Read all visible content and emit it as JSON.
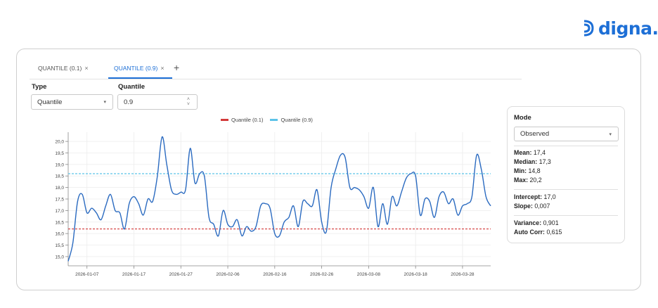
{
  "logo": {
    "text": "digna",
    "dot": "."
  },
  "tabs": [
    {
      "label": "QUANTILE (0.1)",
      "close": "×",
      "active": false
    },
    {
      "label": "QUANTILE (0.9)",
      "close": "×",
      "active": true
    }
  ],
  "tab_add": "+",
  "controls": {
    "type_label": "Type",
    "type_value": "Quantile",
    "quantile_label": "Quantile",
    "quantile_value": "0.9",
    "caret": "▾",
    "up": "˄",
    "down": "˅"
  },
  "stats": {
    "mode_label": "Mode",
    "mode_value": "Observed",
    "mean_label": "Mean:",
    "mean": "17,4",
    "median_label": "Median:",
    "median": "17,3",
    "min_label": "Min:",
    "min": "14,8",
    "max_label": "Max:",
    "max": "20,2",
    "intercept_label": "Intercept:",
    "intercept": "17,0",
    "slope_label": "Slope:",
    "slope": "0,007",
    "variance_label": "Variance:",
    "variance": "0,901",
    "autocorr_label": "Auto Corr:",
    "autocorr": "0,615"
  },
  "colors": {
    "accent": "#1d6fd6",
    "series": "#2a6ac0",
    "q_low": "#d33a3a",
    "q_high": "#5cc3e8"
  },
  "chart_data": {
    "type": "line",
    "title": "",
    "xlabel": "",
    "ylabel": "",
    "ylim": [
      14.6,
      20.4
    ],
    "yticks": [
      "15,0",
      "15,5",
      "16,0",
      "16,5",
      "17,0",
      "17,5",
      "18,0",
      "18,5",
      "19,0",
      "19,5",
      "20,0"
    ],
    "xticks": [
      "2026-01-07",
      "2026-01-17",
      "2026-01-27",
      "2026-02-06",
      "2026-02-16",
      "2026-02-26",
      "2026-03-08",
      "2026-03-18",
      "2026-03-28"
    ],
    "x_start": "2026-01-03",
    "x_end": "2026-04-03",
    "legend": [
      {
        "name": "Quantile (0.1)",
        "color": "#d33a3a",
        "value": 16.2
      },
      {
        "name": "Quantile (0.9)",
        "color": "#5cc3e8",
        "value": 18.6
      }
    ],
    "series": [
      {
        "name": "",
        "values": [
          14.8,
          15.6,
          17.4,
          17.7,
          16.9,
          17.1,
          16.9,
          16.6,
          17.2,
          17.7,
          17.0,
          16.9,
          16.2,
          17.3,
          17.6,
          17.3,
          16.8,
          17.5,
          17.4,
          18.5,
          20.2,
          19.0,
          17.9,
          17.7,
          17.8,
          17.9,
          19.7,
          18.2,
          18.6,
          18.5,
          16.7,
          16.4,
          15.9,
          17.0,
          16.4,
          16.3,
          16.6,
          15.9,
          16.3,
          16.1,
          16.3,
          17.2,
          17.3,
          17.1,
          16.0,
          15.9,
          16.5,
          16.7,
          17.2,
          16.3,
          17.4,
          17.3,
          17.2,
          17.9,
          16.5,
          16.1,
          18.0,
          18.8,
          19.4,
          19.3,
          18.0,
          18.0,
          17.9,
          17.6,
          17.1,
          18.0,
          16.3,
          17.3,
          16.4,
          17.6,
          17.2,
          17.8,
          18.4,
          18.6,
          18.5,
          16.8,
          17.5,
          17.4,
          16.7,
          17.6,
          17.8,
          17.3,
          17.5,
          16.8,
          17.2,
          17.3,
          17.6,
          19.4,
          18.8,
          17.6,
          17.2
        ]
      }
    ]
  }
}
